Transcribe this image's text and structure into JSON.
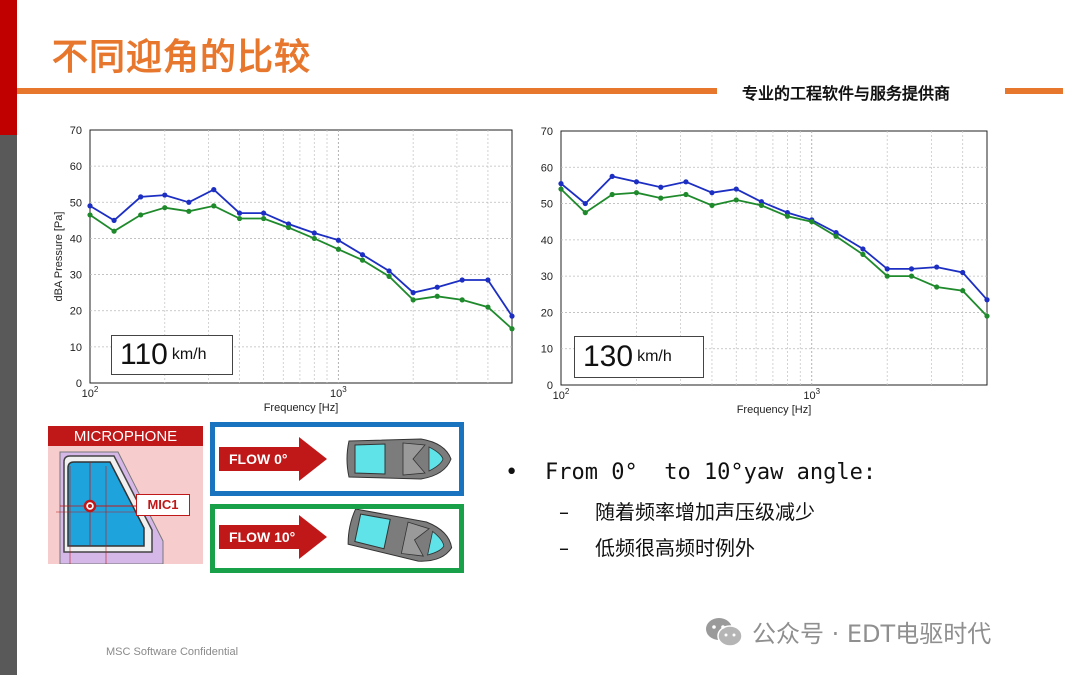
{
  "header": {
    "title": "不同迎角的比较",
    "tagline": "专业的工程软件与服务提供商"
  },
  "charts": [
    {
      "type": "line",
      "speed_value": "110",
      "speed_unit": "km/h",
      "xlabel": "Frequency [Hz]",
      "ylabel": "dBA Pressure [Pa]",
      "x_scale": "log",
      "xlim": [
        100,
        5000
      ],
      "ylim": [
        0,
        70
      ],
      "yticks": [
        "0",
        "10",
        "20",
        "30",
        "40",
        "50",
        "60",
        "70"
      ],
      "x": [
        100,
        125,
        160,
        200,
        250,
        315,
        400,
        500,
        630,
        800,
        1000,
        1250,
        1600,
        2000,
        2500,
        3150,
        4000,
        5000
      ],
      "series": [
        {
          "color": "#1c2fc2",
          "values": [
            49,
            45,
            51.5,
            52,
            50,
            53.5,
            47,
            47,
            44,
            41.5,
            39.5,
            35.5,
            31,
            25,
            26.5,
            28.5,
            28.5,
            18.5
          ]
        },
        {
          "color": "#1f8a2c",
          "values": [
            46.5,
            42,
            46.5,
            48.5,
            47.5,
            49,
            45.5,
            45.5,
            43,
            40,
            37,
            34,
            29.5,
            23,
            24,
            23,
            21,
            15
          ]
        }
      ]
    },
    {
      "type": "line",
      "speed_value": "130",
      "speed_unit": "km/h",
      "xlabel": "Frequency [Hz]",
      "ylabel": "",
      "x_scale": "log",
      "xlim": [
        100,
        5000
      ],
      "ylim": [
        0,
        70
      ],
      "yticks": [
        "0",
        "10",
        "20",
        "30",
        "40",
        "50",
        "60",
        "70"
      ],
      "x": [
        100,
        125,
        160,
        200,
        250,
        315,
        400,
        500,
        630,
        800,
        1000,
        1250,
        1600,
        2000,
        2500,
        3150,
        4000,
        5000
      ],
      "series": [
        {
          "color": "#1c2fc2",
          "values": [
            55.5,
            50,
            57.5,
            56,
            54.5,
            56,
            53,
            54,
            50.5,
            47.5,
            45.5,
            42,
            37.5,
            32,
            32,
            32.5,
            31,
            23.5
          ]
        },
        {
          "color": "#1f8a2c",
          "values": [
            54,
            47.5,
            52.5,
            53,
            51.5,
            52.5,
            49.5,
            51,
            49.5,
            46.5,
            45,
            41,
            36,
            30,
            30,
            27,
            26,
            19
          ]
        }
      ]
    }
  ],
  "microphone": {
    "header": "MICROPHONE",
    "mic_label": "MIC1"
  },
  "flows": [
    {
      "label": "FLOW 0°",
      "frame_color": "#1a73bf"
    },
    {
      "label": "FLOW 10°",
      "frame_color": "#19a14a"
    }
  ],
  "bullets": {
    "main": "From 0°  to 10°yaw angle:",
    "subs": [
      "随着频率增加声压级减少",
      "低频很高频时例外"
    ]
  },
  "footer": {
    "confidential": "MSC Software Confidential",
    "watermark": "公众号 · EDT电驱时代"
  },
  "colors": {
    "accent": "#e8772e",
    "top_bar": "#c00000",
    "side_bar": "#595959"
  }
}
